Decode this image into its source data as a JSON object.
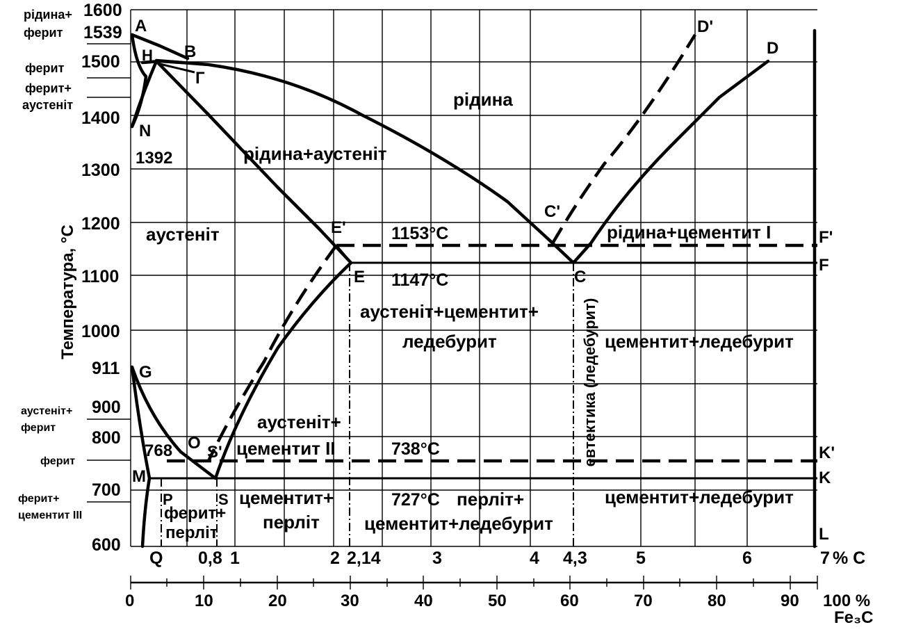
{
  "y_axis": {
    "label": "Температура, °С",
    "ticks": [
      {
        "label": "1600",
        "value": 1600
      },
      {
        "label": "1500",
        "value": 1500
      },
      {
        "label": "1400",
        "value": 1400
      },
      {
        "label": "1300",
        "value": 1300
      },
      {
        "label": "1200",
        "value": 1200
      },
      {
        "label": "1100",
        "value": 1100
      },
      {
        "label": "1000",
        "value": 1000
      },
      {
        "label": "900",
        "value": 900
      },
      {
        "label": "800",
        "value": 800
      },
      {
        "label": "700",
        "value": 700
      },
      {
        "label": "600",
        "value": 600
      }
    ],
    "special": [
      {
        "label": "1539",
        "value": 1539
      },
      {
        "label": "911",
        "value": 911
      }
    ]
  },
  "x_axis_carbon": {
    "unit_label": "% С",
    "ticks": [
      {
        "label": "0,8",
        "value": 0.8
      },
      {
        "label": "1",
        "value": 1
      },
      {
        "label": "2",
        "value": 2
      },
      {
        "label": "2,14",
        "value": 2.14
      },
      {
        "label": "3",
        "value": 3
      },
      {
        "label": "4",
        "value": 4
      },
      {
        "label": "4,3",
        "value": 4.3
      },
      {
        "label": "5",
        "value": 5
      },
      {
        "label": "6",
        "value": 6
      },
      {
        "label": "7",
        "value": 7
      }
    ],
    "extra_label": "Q"
  },
  "x_axis_fe3c": {
    "ticks": [
      "0",
      "10",
      "20",
      "30",
      "40",
      "50",
      "60",
      "70",
      "80",
      "90",
      "100 %"
    ],
    "unit_label": "Fe₃C"
  },
  "left_labels": [
    {
      "id": "ridyna-ferit-1",
      "text": "рідина+"
    },
    {
      "id": "ridyna-ferit-2",
      "text": "ферит"
    },
    {
      "id": "ferit-top",
      "text": "ферит"
    },
    {
      "id": "ferit-austenit-1",
      "text": "ферит+"
    },
    {
      "id": "ferit-austenit-2",
      "text": "аустеніт"
    },
    {
      "id": "austenit-ferit-1",
      "text": "аустеніт+"
    },
    {
      "id": "austenit-ferit-2",
      "text": "ферит"
    },
    {
      "id": "ferit-mid",
      "text": "ферит"
    },
    {
      "id": "ferit-cem3-1",
      "text": "ферит+"
    },
    {
      "id": "ferit-cem3-2",
      "text": "цементит III"
    }
  ],
  "points": [
    {
      "id": "A",
      "text": "A"
    },
    {
      "id": "H",
      "text": "H"
    },
    {
      "id": "B",
      "text": "B"
    },
    {
      "id": "Gamma",
      "text": "Г"
    },
    {
      "id": "N",
      "text": "N"
    },
    {
      "id": "n1392",
      "text": "1392"
    },
    {
      "id": "D",
      "text": "D"
    },
    {
      "id": "Dp",
      "text": "D'"
    },
    {
      "id": "Cp",
      "text": "C'"
    },
    {
      "id": "C",
      "text": "C"
    },
    {
      "id": "Ep",
      "text": "E'"
    },
    {
      "id": "E",
      "text": "E"
    },
    {
      "id": "Fp",
      "text": "F'"
    },
    {
      "id": "F",
      "text": "F"
    },
    {
      "id": "G",
      "text": "G"
    },
    {
      "id": "n768",
      "text": "768"
    },
    {
      "id": "O",
      "text": "O"
    },
    {
      "id": "Sp",
      "text": "S'"
    },
    {
      "id": "S",
      "text": "S"
    },
    {
      "id": "M",
      "text": "M"
    },
    {
      "id": "P",
      "text": "P"
    },
    {
      "id": "Kp",
      "text": "K'"
    },
    {
      "id": "K",
      "text": "K"
    },
    {
      "id": "L",
      "text": "L"
    }
  ],
  "temperatures": [
    {
      "id": "t1153",
      "text": "1153°С"
    },
    {
      "id": "t1147",
      "text": "1147°С"
    },
    {
      "id": "t738",
      "text": "738°С"
    },
    {
      "id": "t727",
      "text": "727°С"
    }
  ],
  "regions": [
    {
      "id": "ridyna",
      "text": "рідина"
    },
    {
      "id": "ridyna-austenit",
      "text": "рідина+аустеніт"
    },
    {
      "id": "austenit",
      "text": "аустеніт"
    },
    {
      "id": "ridyna-cementyt",
      "text": "рідина+цементит I"
    },
    {
      "id": "aus-cem-led-1",
      "text": "аустеніт+цементит+"
    },
    {
      "id": "aus-cem-led-2",
      "text": "ледебурит"
    },
    {
      "id": "cem-led-upper",
      "text": "цементит+ледебурит"
    },
    {
      "id": "eutektyka",
      "text": "евтектика (ледебурит)"
    },
    {
      "id": "aus-cem2-1",
      "text": "аустеніт+"
    },
    {
      "id": "aus-cem2-2",
      "text": "цементит II"
    },
    {
      "id": "cem-perlit-1",
      "text": "цементит+"
    },
    {
      "id": "cem-perlit-2",
      "text": "перліт"
    },
    {
      "id": "ferit-perlit-1",
      "text": "ферит+"
    },
    {
      "id": "ferit-perlit-2",
      "text": "перліт"
    },
    {
      "id": "perlit-cem-led-1",
      "text": "перліт+"
    },
    {
      "id": "perlit-cem-led-2",
      "text": "цементит+ледебурит"
    },
    {
      "id": "cem-led-lower",
      "text": "цементит+ледебурит"
    }
  ]
}
